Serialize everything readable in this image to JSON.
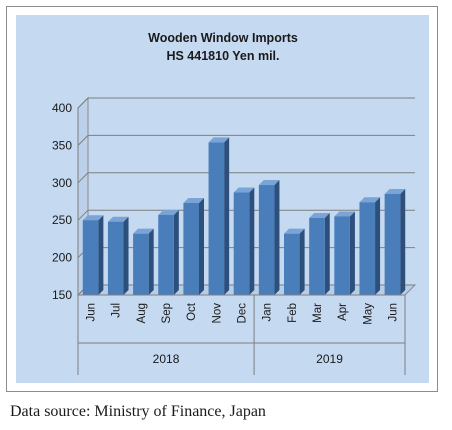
{
  "chart_data": {
    "type": "bar",
    "title": "Wooden Window Imports",
    "subtitle": "HS 441810 Yen mil.",
    "categories": [
      "Jun",
      "Jul",
      "Aug",
      "Sep",
      "Oct",
      "Nov",
      "Dec",
      "Jan",
      "Feb",
      "Mar",
      "Apr",
      "May",
      "Jun"
    ],
    "groups": [
      {
        "label": "2018",
        "count": 7
      },
      {
        "label": "2019",
        "count": 6
      }
    ],
    "values": [
      250,
      248,
      232,
      257,
      273,
      354,
      287,
      297,
      232,
      253,
      255,
      274,
      285
    ],
    "ylim": [
      150,
      400
    ],
    "yticks": [
      150,
      200,
      250,
      300,
      350,
      400
    ],
    "grid": true,
    "bar_color": "#4a7ebb",
    "background_color": "#c5d9f1"
  },
  "source": "Data source: Ministry of Finance, Japan"
}
